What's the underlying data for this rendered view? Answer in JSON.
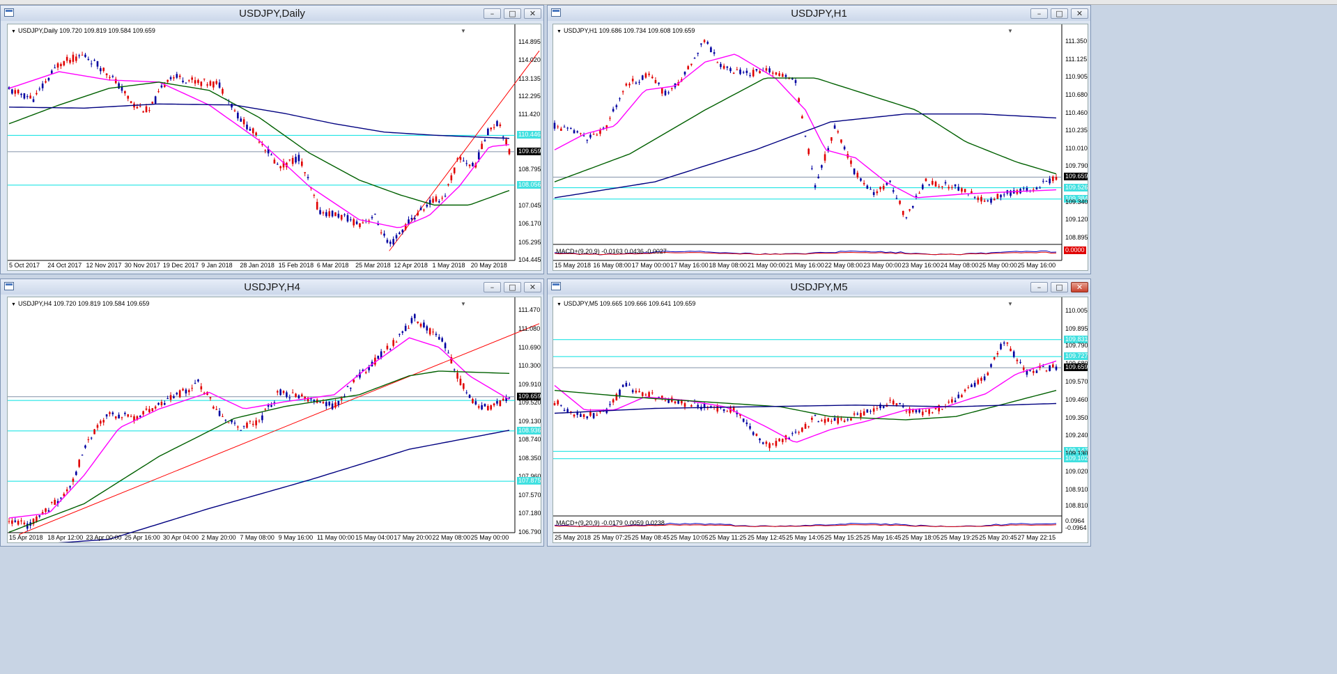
{
  "windows": [
    {
      "key": "daily",
      "title": "USDJPY,Daily",
      "legend": "USDJPY,Daily  109.720 109.819 109.584 109.659",
      "price_labels": [
        "114.895",
        "114.020",
        "113.135",
        "112.295",
        "111.420",
        "110.446",
        "109.659",
        "108.795",
        "108.056",
        "107.045",
        "106.170",
        "105.295",
        "104.445"
      ],
      "time_labels": [
        "5 Oct 2017",
        "24 Oct 2017",
        "12 Nov 2017",
        "30 Nov 2017",
        "19 Dec 2017",
        "9 Jan 2018",
        "28 Jan 2018",
        "15 Feb 2018",
        "6 Mar 2018",
        "25 Mar 2018",
        "12 Apr 2018",
        "1 May 2018",
        "20 May 2018"
      ],
      "price_range": [
        104.445,
        115.3
      ],
      "hlines": [
        110.446,
        108.056
      ],
      "current": 109.659
    },
    {
      "key": "h1",
      "title": "USDJPY,H1",
      "legend": "USDJPY,H1  109.686 109.734 109.608 109.659",
      "price_labels": [
        "111.350",
        "111.125",
        "110.905",
        "110.680",
        "110.460",
        "110.235",
        "110.010",
        "109.790",
        "109.659",
        "109.526",
        "109.384",
        "109.340",
        "109.120",
        "108.895"
      ],
      "time_labels": [
        "15 May 2018",
        "16 May 08:00",
        "17 May 00:00",
        "17 May 16:00",
        "18 May 08:00",
        "21 May 00:00",
        "21 May 16:00",
        "22 May 08:00",
        "23 May 00:00",
        "23 May 16:00",
        "24 May 08:00",
        "25 May 00:00",
        "25 May 16:00"
      ],
      "price_range": [
        108.895,
        111.45
      ],
      "hlines": [
        109.526,
        109.384
      ],
      "current": 109.659,
      "macd_label": "MACD+(9,20,9) -0.0163 0.0436 -0.0027",
      "macd_value": "0.0000"
    },
    {
      "key": "h4",
      "title": "USDJPY,H4",
      "legend": "USDJPY,H4  109.720 109.819 109.584 109.659",
      "price_labels": [
        "111.470",
        "111.080",
        "110.690",
        "110.300",
        "109.910",
        "109.659",
        "109.520",
        "109.130",
        "108.936",
        "108.740",
        "108.350",
        "107.960",
        "107.875",
        "107.570",
        "107.180",
        "106.790"
      ],
      "time_labels": [
        "15 Apr 2018",
        "18 Apr 12:00",
        "23 Apr 00:00",
        "25 Apr 16:00",
        "30 Apr 04:00",
        "2 May 20:00",
        "7 May 08:00",
        "9 May 16:00",
        "11 May 00:00",
        "15 May 04:00",
        "17 May 20:00",
        "22 May 08:00",
        "25 May 00:00"
      ],
      "price_range": [
        106.79,
        111.55
      ],
      "hlines": [
        109.58,
        108.936,
        107.875
      ],
      "current": 109.659
    },
    {
      "key": "m5",
      "title": "USDJPY,M5",
      "legend": "USDJPY,M5  109.665 109.666 109.641 109.659",
      "price_labels": [
        "110.005",
        "109.895",
        "109.831",
        "109.790",
        "109.727",
        "109.680",
        "109.659",
        "109.570",
        "109.460",
        "109.350",
        "109.240",
        "109.147",
        "109.130",
        "109.102",
        "109.020",
        "108.910",
        "108.810",
        "0.0964",
        "-0.0964"
      ],
      "time_labels": [
        "25 May 2018",
        "25 May 07:25",
        "25 May 08:45",
        "25 May 10:05",
        "25 May 11:25",
        "25 May 12:45",
        "25 May 14:05",
        "25 May 15:25",
        "25 May 16:45",
        "25 May 18:05",
        "25 May 19:25",
        "25 May 20:45",
        "27 May 22:15"
      ],
      "price_range": [
        108.79,
        110.03
      ],
      "hlines": [
        109.831,
        109.727,
        109.147,
        109.102
      ],
      "current": 109.659,
      "macd_label": "MACD+(9,20,9) -0.0179 0.0059 0.0238"
    }
  ],
  "colors": {
    "bull": "#0000a0",
    "bear": "#e00000",
    "ma_fast": "#ff00ff",
    "ma_mid": "#006000",
    "ma_slow": "#000080",
    "hline": "#00e0e0",
    "trend": "#ff0000",
    "pricebox_current": "#000000",
    "pricebox_line": "#40e0e0"
  }
}
